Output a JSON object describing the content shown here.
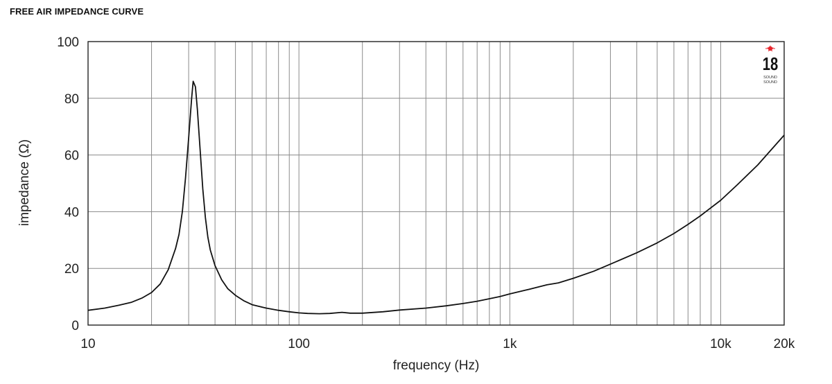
{
  "title": "FREE AIR IMPEDANCE CURVE",
  "logo": {
    "text": "18",
    "subtext": "SOUND",
    "star_color": "#e8262d"
  },
  "chart_data": {
    "type": "line",
    "xscale": "log",
    "xlim": [
      10,
      20000
    ],
    "ylim": [
      0,
      100
    ],
    "grid": true,
    "xlabel": "frequency (Hz)",
    "ylabel": "impedance (Ω)",
    "xticks": [
      {
        "value": 10,
        "label": "10"
      },
      {
        "value": 100,
        "label": "100"
      },
      {
        "value": 1000,
        "label": "1k"
      },
      {
        "value": 10000,
        "label": "10k"
      },
      {
        "value": 20000,
        "label": "20k"
      }
    ],
    "yticks": [
      {
        "value": 0,
        "label": "0"
      },
      {
        "value": 20,
        "label": "20"
      },
      {
        "value": 40,
        "label": "40"
      },
      {
        "value": 60,
        "label": "60"
      },
      {
        "value": 80,
        "label": "80"
      },
      {
        "value": 100,
        "label": "100"
      }
    ],
    "series": [
      {
        "color": "#111111",
        "points": [
          [
            10,
            5.2
          ],
          [
            12,
            6.0
          ],
          [
            14,
            7.0
          ],
          [
            16,
            8.0
          ],
          [
            18,
            9.5
          ],
          [
            20,
            11.5
          ],
          [
            22,
            14.5
          ],
          [
            24,
            19.5
          ],
          [
            26,
            27
          ],
          [
            27,
            32
          ],
          [
            28,
            40
          ],
          [
            29,
            52
          ],
          [
            30,
            66
          ],
          [
            31,
            80
          ],
          [
            31.5,
            86
          ],
          [
            32.3,
            84
          ],
          [
            33,
            76
          ],
          [
            34,
            62
          ],
          [
            35,
            48
          ],
          [
            36,
            38
          ],
          [
            37,
            31
          ],
          [
            38,
            26.5
          ],
          [
            40,
            21
          ],
          [
            43,
            16
          ],
          [
            46,
            12.8
          ],
          [
            50,
            10.5
          ],
          [
            55,
            8.5
          ],
          [
            60,
            7.2
          ],
          [
            70,
            6.0
          ],
          [
            80,
            5.2
          ],
          [
            90,
            4.7
          ],
          [
            100,
            4.3
          ],
          [
            110,
            4.1
          ],
          [
            125,
            4.0
          ],
          [
            140,
            4.1
          ],
          [
            160,
            4.5
          ],
          [
            175,
            4.2
          ],
          [
            200,
            4.2
          ],
          [
            250,
            4.7
          ],
          [
            300,
            5.3
          ],
          [
            400,
            6.0
          ],
          [
            500,
            6.8
          ],
          [
            600,
            7.6
          ],
          [
            700,
            8.4
          ],
          [
            800,
            9.3
          ],
          [
            900,
            10.1
          ],
          [
            1000,
            11.0
          ],
          [
            1200,
            12.4
          ],
          [
            1500,
            14.2
          ],
          [
            1700,
            14.9
          ],
          [
            2000,
            16.5
          ],
          [
            2500,
            19.0
          ],
          [
            3000,
            21.5
          ],
          [
            4000,
            25.5
          ],
          [
            5000,
            29.0
          ],
          [
            6000,
            32.3
          ],
          [
            7000,
            35.5
          ],
          [
            8000,
            38.5
          ],
          [
            10000,
            44.0
          ],
          [
            12000,
            49.5
          ],
          [
            15000,
            56.5
          ],
          [
            20000,
            67.0
          ]
        ]
      }
    ]
  }
}
